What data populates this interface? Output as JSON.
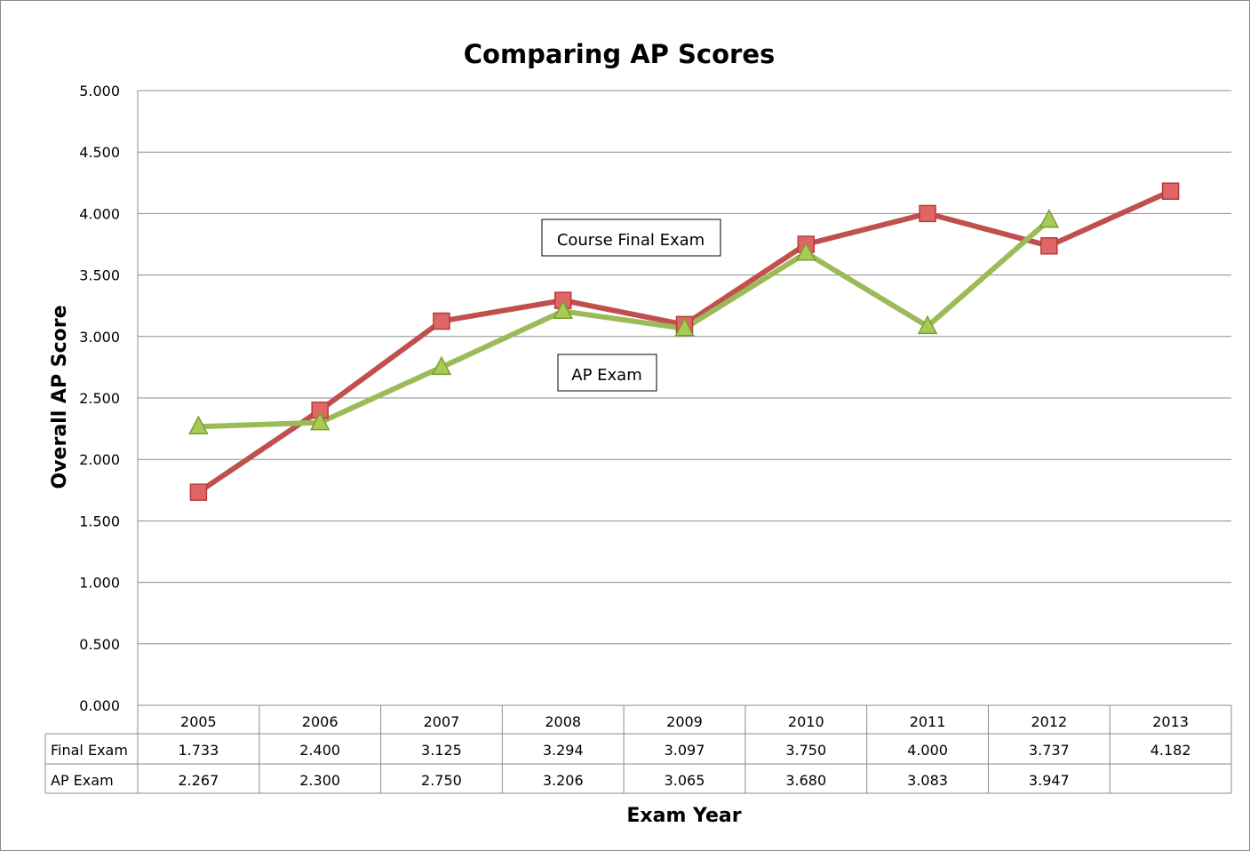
{
  "chart_data": {
    "type": "line",
    "title": "Comparing AP Scores",
    "xlabel": "Exam Year",
    "ylabel": "Overall AP Score",
    "ylim": [
      0,
      5
    ],
    "y_ticks": [
      "0.000",
      "0.500",
      "1.000",
      "1.500",
      "2.000",
      "2.500",
      "3.000",
      "3.500",
      "4.000",
      "4.500",
      "5.000"
    ],
    "grid": true,
    "categories": [
      "2005",
      "2006",
      "2007",
      "2008",
      "2009",
      "2010",
      "2011",
      "2012",
      "2013"
    ],
    "series": [
      {
        "name": "Final Exam",
        "color": "#c0504d",
        "marker": "square",
        "marker_color": "#e06666",
        "values": [
          1.733,
          2.4,
          3.125,
          3.294,
          3.097,
          3.75,
          4.0,
          3.737,
          4.182
        ],
        "labels": [
          "1.733",
          "2.400",
          "3.125",
          "3.294",
          "3.097",
          "3.750",
          "4.000",
          "3.737",
          "4.182"
        ]
      },
      {
        "name": "AP Exam",
        "color": "#9bbb59",
        "marker": "triangle",
        "marker_color": "#a6cc55",
        "values": [
          2.267,
          2.3,
          2.75,
          3.206,
          3.065,
          3.68,
          3.083,
          3.947,
          null
        ],
        "labels": [
          "2.267",
          "2.300",
          "2.750",
          "3.206",
          "3.065",
          "3.680",
          "3.083",
          "3.947",
          ""
        ]
      }
    ],
    "annotations": [
      "Course Final Exam",
      "AP Exam"
    ],
    "legend": "data-table-below"
  }
}
